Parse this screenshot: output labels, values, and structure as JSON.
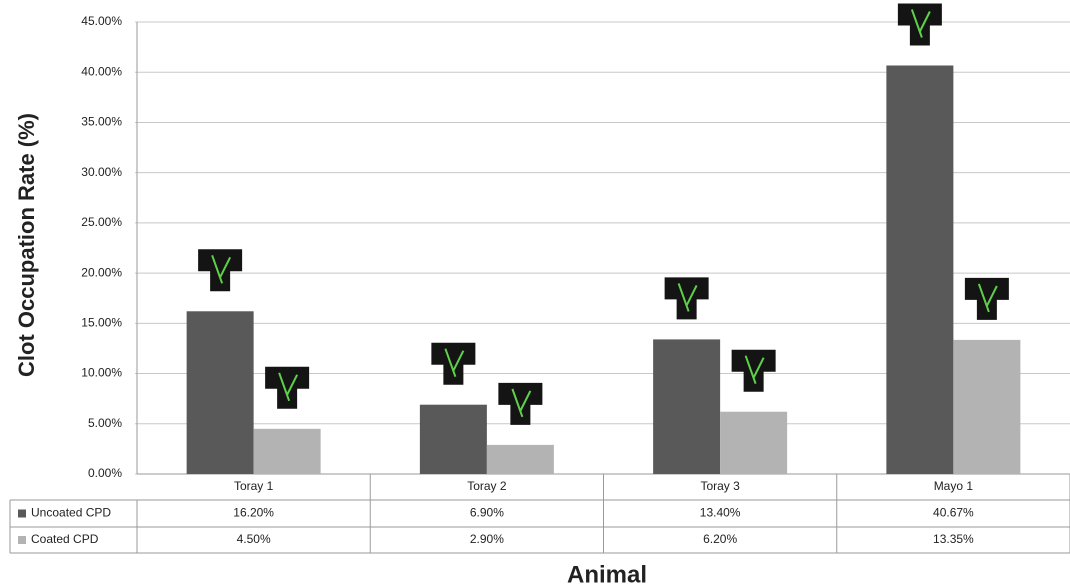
{
  "chart_data": {
    "type": "bar",
    "x_label": "Animal",
    "y_label": "Clot Occupation Rate (%)",
    "categories": [
      "Toray 1",
      "Toray 2",
      "Toray 3",
      "Mayo 1"
    ],
    "series": [
      {
        "name": "Uncoated CPD",
        "color": "#595959",
        "values": [
          16.2,
          6.9,
          13.4,
          40.67
        ],
        "value_labels": [
          "16.20%",
          "6.90%",
          "13.40%",
          "40.67%"
        ]
      },
      {
        "name": "Coated CPD",
        "color": "#b3b3b3",
        "values": [
          4.5,
          2.9,
          6.2,
          13.35
        ],
        "value_labels": [
          "4.50%",
          "2.90%",
          "6.20%",
          "13.35%"
        ]
      }
    ],
    "ylim": [
      0,
      45
    ],
    "yticks": [
      {
        "value": 0,
        "label": "0.00%"
      },
      {
        "value": 5,
        "label": "5.00%"
      },
      {
        "value": 10,
        "label": "10.00%"
      },
      {
        "value": 15,
        "label": "15.00%"
      },
      {
        "value": 20,
        "label": "20.00%"
      },
      {
        "value": 25,
        "label": "25.00%"
      },
      {
        "value": 30,
        "label": "30.00%"
      },
      {
        "value": 35,
        "label": "35.00%"
      },
      {
        "value": 40,
        "label": "40.00%"
      },
      {
        "value": 45,
        "label": "45.00%"
      }
    ],
    "grid": true
  }
}
